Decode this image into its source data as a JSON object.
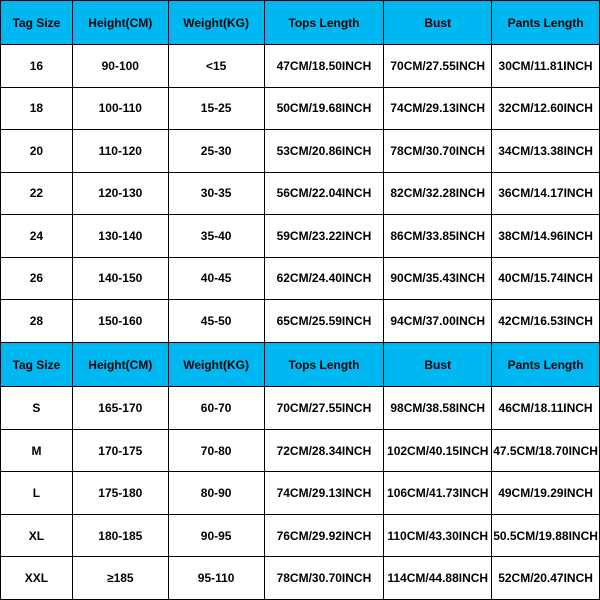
{
  "table": {
    "header_bg": "#00b8f1",
    "border_color": "#000000",
    "cell_bg": "#ffffff",
    "text_color": "#000000",
    "columns": [
      {
        "label": "Tag Size",
        "key": "tag"
      },
      {
        "label": "Height(CM)",
        "key": "h"
      },
      {
        "label": "Weight(KG)",
        "key": "w"
      },
      {
        "label": "Tops Length",
        "key": "tops"
      },
      {
        "label": "Bust",
        "key": "bust"
      },
      {
        "label": "Pants Length",
        "key": "pants"
      }
    ],
    "section1": {
      "rows": [
        {
          "tag": "16",
          "h": "90-100",
          "w": "<15",
          "tops": "47CM/18.50INCH",
          "bust": "70CM/27.55INCH",
          "pants": "30CM/11.81INCH"
        },
        {
          "tag": "18",
          "h": "100-110",
          "w": "15-25",
          "tops": "50CM/19.68INCH",
          "bust": "74CM/29.13INCH",
          "pants": "32CM/12.60INCH"
        },
        {
          "tag": "20",
          "h": "110-120",
          "w": "25-30",
          "tops": "53CM/20.86INCH",
          "bust": "78CM/30.70INCH",
          "pants": "34CM/13.38INCH"
        },
        {
          "tag": "22",
          "h": "120-130",
          "w": "30-35",
          "tops": "56CM/22.04INCH",
          "bust": "82CM/32.28INCH",
          "pants": "36CM/14.17INCH"
        },
        {
          "tag": "24",
          "h": "130-140",
          "w": "35-40",
          "tops": "59CM/23.22INCH",
          "bust": "86CM/33.85INCH",
          "pants": "38CM/14.96INCH"
        },
        {
          "tag": "26",
          "h": "140-150",
          "w": "40-45",
          "tops": "62CM/24.40INCH",
          "bust": "90CM/35.43INCH",
          "pants": "40CM/15.74INCH"
        },
        {
          "tag": "28",
          "h": "150-160",
          "w": "45-50",
          "tops": "65CM/25.59INCH",
          "bust": "94CM/37.00INCH",
          "pants": "42CM/16.53INCH"
        }
      ]
    },
    "section2": {
      "rows": [
        {
          "tag": "S",
          "h": "165-170",
          "w": "60-70",
          "tops": "70CM/27.55INCH",
          "bust": "98CM/38.58INCH",
          "pants": "46CM/18.11INCH"
        },
        {
          "tag": "M",
          "h": "170-175",
          "w": "70-80",
          "tops": "72CM/28.34INCH",
          "bust": "102CM/40.15INCH",
          "pants": "47.5CM/18.70INCH"
        },
        {
          "tag": "L",
          "h": "175-180",
          "w": "80-90",
          "tops": "74CM/29.13INCH",
          "bust": "106CM/41.73INCH",
          "pants": "49CM/19.29INCH"
        },
        {
          "tag": "XL",
          "h": "180-185",
          "w": "90-95",
          "tops": "76CM/29.92INCH",
          "bust": "110CM/43.30INCH",
          "pants": "50.5CM/19.88INCH"
        },
        {
          "tag": "XXL",
          "h": "≥185",
          "w": "95-110",
          "tops": "78CM/30.70INCH",
          "bust": "114CM/44.88INCH",
          "pants": "52CM/20.47INCH"
        }
      ]
    }
  }
}
